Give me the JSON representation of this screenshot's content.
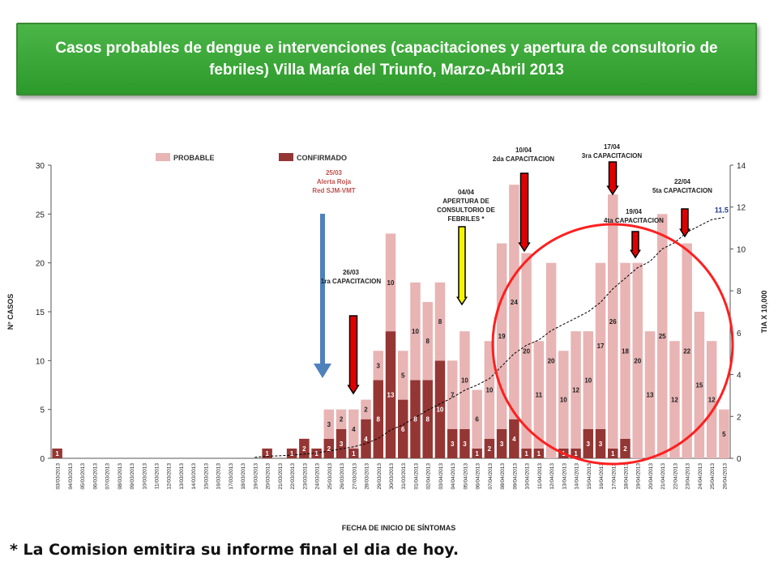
{
  "slide": {
    "title": "Casos probables de dengue  e  intervenciones (capacitaciones y apertura de consultorio de febriles) Villa María del Triunfo,  Marzo-Abril 2013",
    "footnote": "* La Comision emitira su informe final el dia de hoy."
  },
  "colors": {
    "title_bg": "#3aa836",
    "probable": "#e8b4b4",
    "confirmado": "#943634",
    "blue_arrow": "#4f81bd",
    "red_arrow": "#e00000",
    "yellow_arrow": "#f5f500",
    "circle": "#ff1f1f",
    "line_label": "#1f3a93"
  },
  "chart_data": {
    "type": "bar",
    "stacked": true,
    "xlabel": "FECHA DE INICIO DE SÍNTOMAS",
    "ylabel": "N° CASOS",
    "y2label": "TIA X 10,000",
    "ylim": [
      0,
      30
    ],
    "yticks": [
      0,
      5,
      10,
      15,
      20,
      25,
      30
    ],
    "y2lim": [
      0,
      14
    ],
    "y2ticks": [
      0,
      2,
      4,
      6,
      8,
      10,
      12,
      14
    ],
    "legend_position": "top",
    "categories": [
      "03/03/2013",
      "04/03/2013",
      "05/03/2013",
      "06/03/2013",
      "07/03/2013",
      "08/03/2013",
      "09/03/2013",
      "10/03/2013",
      "11/03/2013",
      "12/03/2013",
      "13/03/2013",
      "14/03/2013",
      "15/03/2013",
      "16/03/2013",
      "17/03/2013",
      "18/03/2013",
      "19/03/2013",
      "20/03/2013",
      "21/03/2013",
      "22/03/2013",
      "23/03/2013",
      "24/03/2013",
      "25/03/2013",
      "26/03/2013",
      "27/03/2013",
      "28/03/2013",
      "29/03/2013",
      "30/03/2013",
      "31/03/2013",
      "01/04/2013",
      "02/04/2013",
      "03/04/2013",
      "04/04/2013",
      "05/04/2013",
      "06/04/2013",
      "07/04/2013",
      "08/04/2013",
      "09/04/2013",
      "10/04/2013",
      "11/04/2013",
      "12/04/2013",
      "13/04/2013",
      "14/04/2013",
      "15/04/2013",
      "16/04/2013",
      "17/04/2013",
      "18/04/2013",
      "19/04/2013",
      "20/04/2013",
      "21/04/2013",
      "22/04/2013",
      "23/04/2013",
      "24/04/2013",
      "25/04/2013",
      "26/04/2013"
    ],
    "series": [
      {
        "name": "CONFIRMADO",
        "values": [
          1,
          0,
          0,
          0,
          0,
          0,
          0,
          0,
          0,
          0,
          0,
          0,
          0,
          0,
          0,
          0,
          0,
          1,
          0,
          1,
          2,
          1,
          2,
          3,
          1,
          4,
          8,
          13,
          6,
          8,
          8,
          10,
          3,
          3,
          1,
          2,
          3,
          4,
          1,
          1,
          0,
          1,
          1,
          3,
          3,
          1,
          2,
          0,
          0,
          0,
          0,
          0,
          0,
          0,
          0
        ]
      },
      {
        "name": "PROBABLE",
        "values": [
          0,
          0,
          0,
          0,
          0,
          0,
          0,
          0,
          0,
          0,
          0,
          0,
          0,
          0,
          0,
          0,
          0,
          0,
          0,
          0,
          0,
          0,
          3,
          2,
          4,
          2,
          3,
          10,
          5,
          10,
          8,
          8,
          7,
          10,
          6,
          10,
          19,
          24,
          20,
          11,
          20,
          10,
          12,
          10,
          17,
          26,
          18,
          20,
          13,
          25,
          12,
          22,
          15,
          12,
          5
        ]
      }
    ],
    "bar_labels": {
      "confirmado": [
        "1",
        "",
        "",
        "",
        "",
        "",
        "",
        "",
        "",
        "",
        "",
        "",
        "",
        "",
        "",
        "",
        "",
        "1",
        "",
        "1",
        "2",
        "1",
        "2",
        "3",
        "1",
        "4",
        "8",
        "13",
        "6",
        "8",
        "8",
        "10",
        "3",
        "3",
        "1",
        "2",
        "3",
        "4",
        "1",
        "1",
        "",
        "1",
        "1",
        "3",
        "3",
        "1",
        "2",
        "",
        "",
        "",
        "",
        "",
        "",
        "",
        ""
      ],
      "probable": [
        "",
        "",
        "",
        "",
        "",
        "",
        "",
        "",
        "",
        "",
        "",
        "",
        "",
        "",
        "",
        "",
        "",
        "",
        "",
        "",
        "",
        "",
        "3",
        "2",
        "4",
        "2",
        "3",
        "10",
        "5",
        "10",
        "8",
        "8",
        "7",
        "10",
        "6",
        "10",
        "19",
        "24",
        "20",
        "11",
        "20",
        "10",
        "12",
        "10",
        "17",
        "26",
        "18",
        "20",
        "13",
        "25",
        "12",
        "22",
        "15",
        "12",
        "5"
      ]
    },
    "line_series": {
      "name": "TIA X 10,000",
      "axis": "y2",
      "values": [
        0.05,
        0.05,
        0.05,
        0.05,
        0.05,
        0.05,
        0.05,
        0.05,
        0.05,
        0.05,
        0.05,
        0.05,
        0.05,
        0.05,
        0.05,
        0.05,
        0.05,
        0.1,
        0.12,
        0.15,
        0.2,
        0.25,
        0.35,
        0.45,
        0.55,
        0.7,
        0.95,
        1.35,
        1.6,
        1.95,
        2.3,
        2.6,
        2.9,
        3.25,
        3.5,
        3.8,
        4.4,
        5.0,
        5.4,
        5.65,
        6.1,
        6.4,
        6.7,
        7.0,
        7.45,
        8.1,
        8.6,
        9.1,
        9.4,
        10.0,
        10.3,
        10.8,
        11.1,
        11.4,
        11.5
      ]
    },
    "line_end_label": "11.5",
    "annotations": [
      {
        "id": "alerta",
        "text": [
          "25/03",
          "Alerta Roja",
          "Red SJM-VMT"
        ],
        "color": "#c0504d",
        "arrow": "blue",
        "index": 22
      },
      {
        "id": "cap1",
        "text": [
          "26/03",
          "1ra CAPACITACION"
        ],
        "color": "#222222",
        "arrow": "red",
        "index": 23
      },
      {
        "id": "consultorio",
        "text": [
          "04/04",
          "APERTURA DE",
          "CONSULTORIO DE",
          "FEBRILES  *"
        ],
        "color": "#222222",
        "arrow": "yellow",
        "index": 32
      },
      {
        "id": "cap2",
        "text": [
          "10/04",
          "2da CAPACITACION"
        ],
        "color": "#222222",
        "arrow": "red",
        "index": 38
      },
      {
        "id": "cap3",
        "text": [
          "17/04",
          "3ra CAPACITACION"
        ],
        "color": "#222222",
        "arrow": "red",
        "index": 45
      },
      {
        "id": "cap4",
        "text": [
          "19/04",
          "4ta CAPACITACION"
        ],
        "color": "#222222",
        "arrow": "red",
        "index": 47
      },
      {
        "id": "cap5",
        "text": [
          "22/04",
          "5ta CAPACITACION"
        ],
        "color": "#222222",
        "arrow": "red",
        "index": 50
      }
    ]
  }
}
